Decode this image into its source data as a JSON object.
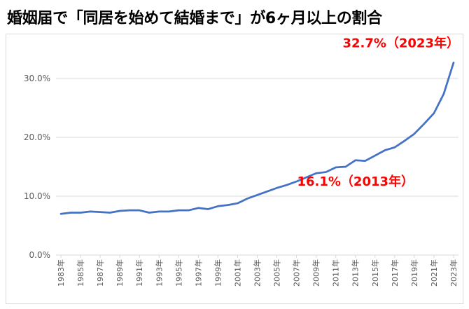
{
  "title": "婚姻届で「同居を始めて結婚まで」が6ヶ月以上の割合",
  "chart_data": {
    "type": "line",
    "title": "婚姻届で「同居を始めて結婚まで」が6ヶ月以上の割合",
    "xlabel": "",
    "ylabel": "",
    "ylim": [
      0,
      35
    ],
    "y_ticks": [
      0,
      10,
      20,
      30
    ],
    "y_tick_labels": [
      "0.0%",
      "10.0%",
      "20.0%",
      "30.0%"
    ],
    "x": [
      1983,
      1984,
      1985,
      1986,
      1987,
      1988,
      1989,
      1990,
      1991,
      1992,
      1993,
      1994,
      1995,
      1996,
      1997,
      1998,
      1999,
      2000,
      2001,
      2002,
      2003,
      2004,
      2005,
      2006,
      2007,
      2008,
      2009,
      2010,
      2011,
      2012,
      2013,
      2014,
      2015,
      2016,
      2017,
      2018,
      2019,
      2020,
      2021,
      2022,
      2023
    ],
    "x_tick_labels": [
      "1983年",
      "1985年",
      "1987年",
      "1989年",
      "1991年",
      "1993年",
      "1995年",
      "1997年",
      "1999年",
      "2001年",
      "2003年",
      "2005年",
      "2007年",
      "2009年",
      "2011年",
      "2013年",
      "2015年",
      "2017年",
      "2019年",
      "2021年",
      "2023年"
    ],
    "series": [
      {
        "color": "#4472c4",
        "values": [
          7.0,
          7.2,
          7.2,
          7.4,
          7.3,
          7.2,
          7.5,
          7.6,
          7.6,
          7.2,
          7.4,
          7.4,
          7.6,
          7.6,
          8.0,
          7.8,
          8.3,
          8.5,
          8.8,
          9.6,
          10.2,
          10.8,
          11.4,
          11.9,
          12.5,
          13.2,
          13.9,
          14.1,
          14.9,
          15.0,
          16.1,
          16.0,
          16.9,
          17.8,
          18.3,
          19.4,
          20.6,
          22.3,
          24.1,
          27.4,
          32.7
        ]
      }
    ],
    "grid": true,
    "legend": "none",
    "annotations": [
      {
        "text": "32.7%（2023年）",
        "x": 2023,
        "y": 32.7,
        "color": "#ff0000"
      },
      {
        "text": "16.1%（2013年）",
        "x": 2013,
        "y": 16.1,
        "color": "#ff0000"
      }
    ]
  }
}
